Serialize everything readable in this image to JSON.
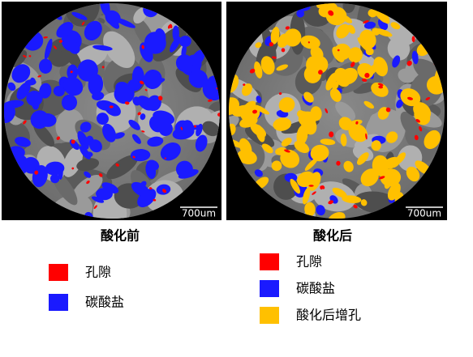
{
  "panels": [
    {
      "scale_bar": "700um",
      "caption": "酸化前",
      "legend": [
        {
          "label": "孔隙",
          "color": "#ff0000"
        },
        {
          "label": "碳酸盐",
          "color": "#1a1aff"
        }
      ]
    },
    {
      "scale_bar": "700um",
      "caption": "酸化后",
      "legend": [
        {
          "label": "孔隙",
          "color": "#ff0000"
        },
        {
          "label": "碳酸盐",
          "color": "#1a1aff"
        },
        {
          "label": "酸化后增孔",
          "color": "#ffc000"
        }
      ]
    }
  ]
}
